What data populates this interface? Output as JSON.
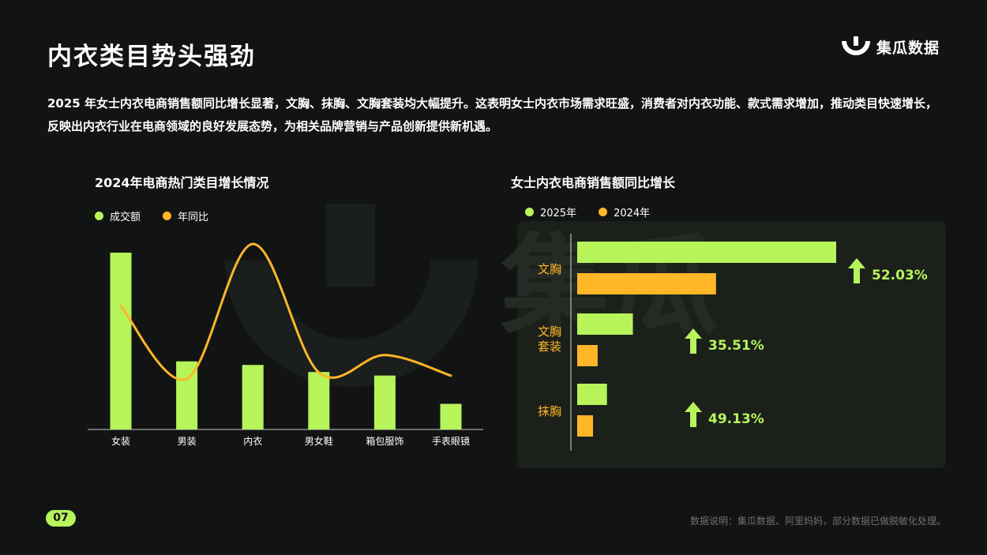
{
  "page": {
    "title": "内衣类目势头强劲",
    "description": "2025 年女士内衣电商销售额同比增长显著，文胸、抹胸、文胸套装均大幅提升。这表明女士内衣市场需求旺盛，消费者对内衣功能、款式需求增加，推动类目快速增长，反映出内衣行业在电商领域的良好发展态势，为相关品牌营销与产品创新提供新机遇。",
    "page_number": "07",
    "source_note": "数据说明：集瓜数据、阿里妈妈，部分数据已做脱敏化处理。"
  },
  "logo": {
    "text": "集瓜数据",
    "icon": "jigua-logo-icon"
  },
  "watermark": {
    "text": "集瓜"
  },
  "colors": {
    "green": "#b6f45a",
    "orange": "#ffb627",
    "background": "#121414",
    "panel": "#1c201b"
  },
  "chart_data": [
    {
      "type": "bar",
      "title": "2024年电商热门类目增长情况",
      "categories": [
        "女装",
        "男装",
        "内衣",
        "男女鞋",
        "箱包服饰",
        "手表眼镜"
      ],
      "series": [
        {
          "name": "成交额",
          "kind": "bar",
          "color": "#b6f45a",
          "values": [
            100,
            38.5,
            36.5,
            32.5,
            30.5,
            14.5
          ]
        },
        {
          "name": "年同比",
          "kind": "line",
          "color": "#ffb627",
          "values": [
            61,
            15,
            100,
            19,
            30,
            17
          ]
        }
      ],
      "ylim": [
        0,
        100
      ]
    },
    {
      "type": "bar",
      "title": "女士内衣电商销售额同比增长",
      "orientation": "horizontal",
      "categories": [
        "文胸",
        "文胸\n套装",
        "抹胸"
      ],
      "series": [
        {
          "name": "2025年",
          "color": "#b6f45a",
          "values": [
            100,
            21.5,
            11.5
          ]
        },
        {
          "name": "2024年",
          "color": "#ffb627",
          "values": [
            53.6,
            7.9,
            6.1
          ]
        }
      ],
      "growth_labels": [
        "52.03%",
        "35.51%",
        "49.13%"
      ],
      "xlim": [
        0,
        100
      ]
    }
  ]
}
